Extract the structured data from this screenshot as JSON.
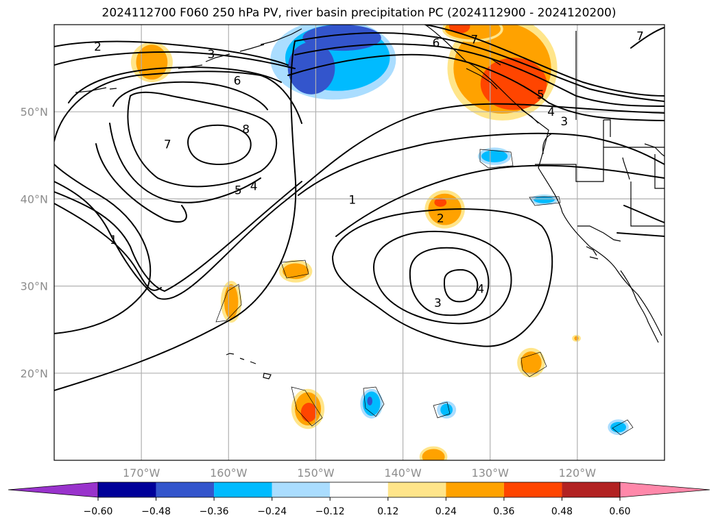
{
  "title": "2024112700 F060 250 hPa PV, river basin precipitation PC (2024112900 - 2024120200)",
  "map": {
    "lon_range": [
      -180,
      -110
    ],
    "lat_range": [
      10,
      60
    ],
    "lon_ticks": [
      {
        "lon": -170,
        "label": "170°W"
      },
      {
        "lon": -160,
        "label": "160°W"
      },
      {
        "lon": -150,
        "label": "150°W"
      },
      {
        "lon": -140,
        "label": "140°W"
      },
      {
        "lon": -130,
        "label": "130°W"
      },
      {
        "lon": -120,
        "label": "120°W"
      }
    ],
    "lat_ticks": [
      {
        "lat": 20,
        "label": "20°N"
      },
      {
        "lat": 30,
        "label": "30°N"
      },
      {
        "lat": 40,
        "label": "40°N"
      },
      {
        "lat": 50,
        "label": "50°N"
      }
    ],
    "gridline_color": "#b0b0b0",
    "tick_label_color": "#8c8c8c"
  },
  "contour_labels": [
    {
      "text": "2",
      "lon": -175,
      "lat": 57.5
    },
    {
      "text": "3",
      "lon": -162,
      "lat": 56.6
    },
    {
      "text": "6",
      "lon": -159,
      "lat": 53.6
    },
    {
      "text": "7",
      "lon": -167,
      "lat": 46.3
    },
    {
      "text": "8",
      "lon": -158,
      "lat": 48.0
    },
    {
      "text": "5",
      "lon": -158.9,
      "lat": 41.0
    },
    {
      "text": "4",
      "lon": -157.1,
      "lat": 41.5
    },
    {
      "text": "1",
      "lon": -145.8,
      "lat": 39.9
    },
    {
      "text": "1",
      "lon": -173.2,
      "lat": 35.3
    },
    {
      "text": "2",
      "lon": -135.7,
      "lat": 37.8
    },
    {
      "text": "3",
      "lon": -136,
      "lat": 28.1
    },
    {
      "text": "4",
      "lon": -131.1,
      "lat": 29.7
    },
    {
      "text": "6",
      "lon": -136.2,
      "lat": 57.9
    },
    {
      "text": "7",
      "lon": -131.8,
      "lat": 58.3
    },
    {
      "text": "5",
      "lon": -124.2,
      "lat": 52.0
    },
    {
      "text": "4",
      "lon": -123.0,
      "lat": 50.0
    },
    {
      "text": "3",
      "lon": -121.5,
      "lat": 48.9
    },
    {
      "text": "7",
      "lon": -112.8,
      "lat": 58.7
    }
  ],
  "colorbar": {
    "levels": [
      "-0.60",
      "-0.48",
      "-0.36",
      "-0.24",
      "-0.12",
      "0.12",
      "0.24",
      "0.36",
      "0.48",
      "0.60"
    ],
    "under_color": "#9933cc",
    "over_color": "#ff88aa",
    "colors": [
      "#000099",
      "#3355cc",
      "#00bbff",
      "#aaddff",
      "#ffffff",
      "#ffe58a",
      "#ffa200",
      "#ff4500",
      "#b22222"
    ]
  },
  "shading": [
    {
      "color": "#ffe58a",
      "lon": -168.8,
      "lat": 55.7,
      "rx": 2.4,
      "ry": 2.3
    },
    {
      "color": "#ffa200",
      "lon": -168.8,
      "lat": 55.7,
      "rx": 1.8,
      "ry": 2.0
    },
    {
      "color": "#aaddff",
      "lon": -148,
      "lat": 56.0,
      "rx": 7.2,
      "ry": 4.6
    },
    {
      "color": "#00bbff",
      "lon": -147.5,
      "lat": 56.2,
      "rx": 6.0,
      "ry": 3.8
    },
    {
      "color": "#3355cc",
      "lon": -150.5,
      "lat": 55.0,
      "rx": 2.7,
      "ry": 3.0
    },
    {
      "color": "#3355cc",
      "lon": -147,
      "lat": 58.5,
      "rx": 4.5,
      "ry": 1.5
    },
    {
      "color": "#ffe58a",
      "lon": -128.6,
      "lat": 55.0,
      "rx": 6.3,
      "ry": 6.0
    },
    {
      "color": "#ffa200",
      "lon": -128.6,
      "lat": 55.0,
      "rx": 5.6,
      "ry": 5.2
    },
    {
      "color": "#ff4500",
      "lon": -127.3,
      "lat": 53.2,
      "rx": 3.8,
      "ry": 3.0
    },
    {
      "color": "#aaddff",
      "lon": -129.5,
      "lat": 44.9,
      "rx": 1.9,
      "ry": 1.0
    },
    {
      "color": "#00bbff",
      "lon": -129.5,
      "lat": 44.9,
      "rx": 1.5,
      "ry": 0.7
    },
    {
      "color": "#aaddff",
      "lon": -123.8,
      "lat": 39.9,
      "rx": 1.6,
      "ry": 0.6
    },
    {
      "color": "#00bbff",
      "lon": -123.8,
      "lat": 39.9,
      "rx": 1.2,
      "ry": 0.4
    },
    {
      "color": "#ffe58a",
      "lon": -135.2,
      "lat": 38.8,
      "rx": 2.3,
      "ry": 2.2
    },
    {
      "color": "#ffa200",
      "lon": -135.2,
      "lat": 38.8,
      "rx": 1.9,
      "ry": 1.8
    },
    {
      "color": "#ff4500",
      "lon": -135.7,
      "lat": 39.6,
      "rx": 0.7,
      "ry": 0.5
    },
    {
      "color": "#ffe58a",
      "lon": -152.3,
      "lat": 31.7,
      "rx": 1.9,
      "ry": 1.3
    },
    {
      "color": "#ffa200",
      "lon": -152.3,
      "lat": 31.7,
      "rx": 1.5,
      "ry": 0.9
    },
    {
      "color": "#ffe58a",
      "lon": -159.7,
      "lat": 28.2,
      "rx": 1.2,
      "ry": 2.4
    },
    {
      "color": "#ffa200",
      "lon": -159.7,
      "lat": 28.2,
      "rx": 0.8,
      "ry": 2.0
    },
    {
      "color": "#ffe58a",
      "lon": -150.9,
      "lat": 15.9,
      "rx": 1.9,
      "ry": 2.3
    },
    {
      "color": "#ffa200",
      "lon": -150.9,
      "lat": 15.9,
      "rx": 1.5,
      "ry": 1.9
    },
    {
      "color": "#ff4500",
      "lon": -150.8,
      "lat": 15.5,
      "rx": 0.9,
      "ry": 1.1
    },
    {
      "color": "#aaddff",
      "lon": -143.6,
      "lat": 16.5,
      "rx": 1.3,
      "ry": 1.7
    },
    {
      "color": "#00bbff",
      "lon": -143.6,
      "lat": 16.5,
      "rx": 1.0,
      "ry": 1.4
    },
    {
      "color": "#3355cc",
      "lon": -143.8,
      "lat": 16.8,
      "rx": 0.3,
      "ry": 0.5
    },
    {
      "color": "#aaddff",
      "lon": -135.0,
      "lat": 15.8,
      "rx": 1.1,
      "ry": 1.0
    },
    {
      "color": "#00bbff",
      "lon": -135.0,
      "lat": 15.8,
      "rx": 0.7,
      "ry": 0.7
    },
    {
      "color": "#ffe58a",
      "lon": -125.3,
      "lat": 21.2,
      "rx": 1.6,
      "ry": 1.7
    },
    {
      "color": "#ffa200",
      "lon": -125.3,
      "lat": 21.2,
      "rx": 1.2,
      "ry": 1.3
    },
    {
      "color": "#ffe58a",
      "lon": -136.5,
      "lat": 10.4,
      "rx": 1.6,
      "ry": 1.2
    },
    {
      "color": "#ffa200",
      "lon": -136.5,
      "lat": 10.4,
      "rx": 1.3,
      "ry": 0.9
    },
    {
      "color": "#ffe58a",
      "lon": -120.1,
      "lat": 24.0,
      "rx": 0.5,
      "ry": 0.4
    },
    {
      "color": "#ffa200",
      "lon": -120.1,
      "lat": 24.0,
      "rx": 0.25,
      "ry": 0.25
    },
    {
      "color": "#aaddff",
      "lon": -115.3,
      "lat": 13.8,
      "rx": 1.2,
      "ry": 0.9
    },
    {
      "color": "#00bbff",
      "lon": -115.3,
      "lat": 13.8,
      "rx": 0.9,
      "ry": 0.6
    },
    {
      "color": "#ffe58a",
      "lon": -132,
      "lat": 59.5,
      "rx": 3.5,
      "ry": 1.5
    },
    {
      "color": "#ffa200",
      "lon": -132,
      "lat": 59.5,
      "rx": 3.2,
      "ry": 1.2
    },
    {
      "color": "#ff4500",
      "lon": -133.5,
      "lat": 59.8,
      "rx": 1.2,
      "ry": 0.8
    }
  ]
}
